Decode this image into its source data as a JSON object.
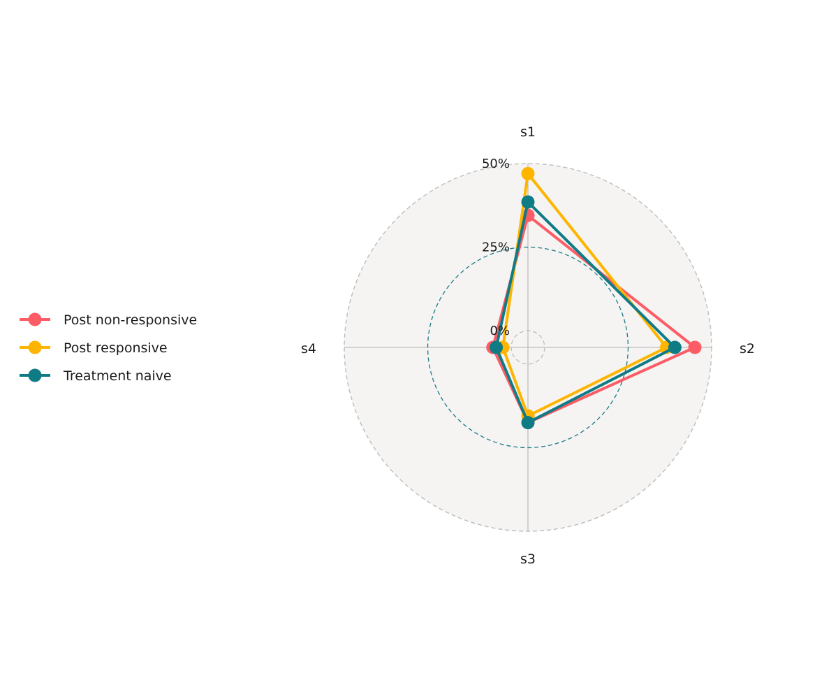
{
  "chart_data": {
    "type": "radar",
    "axes": [
      "s1",
      "s2",
      "s3",
      "s4"
    ],
    "rlim": [
      -5,
      50
    ],
    "grid_rings": [
      0,
      25,
      50
    ],
    "tick_labels": [
      "0%",
      "25%",
      "50%"
    ],
    "legend_position": "left",
    "series": [
      {
        "name": "Post non-responsive",
        "color": "#fc5c65",
        "values": [
          34.5,
          45.0,
          17.5,
          5.5
        ]
      },
      {
        "name": "Post responsive",
        "color": "#ffb400",
        "values": [
          47.0,
          36.5,
          15.5,
          2.5
        ]
      },
      {
        "name": "Treatment naive",
        "color": "#0f7b85",
        "values": [
          38.5,
          39.0,
          17.5,
          4.5
        ]
      }
    ]
  },
  "colors": {
    "plot_background": "#f5f4f2",
    "outer_ring": "#bdbdbd",
    "mid_ring": "#1a7a85",
    "inner_ring": "#bdbdbd",
    "spoke": "#bdbdbd"
  }
}
